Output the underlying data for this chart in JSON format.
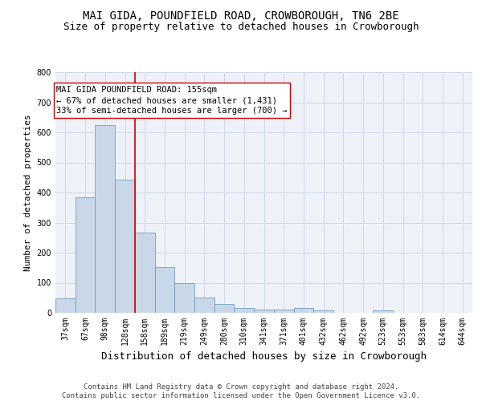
{
  "title_line1": "MAI GIDA, POUNDFIELD ROAD, CROWBOROUGH, TN6 2BE",
  "title_line2": "Size of property relative to detached houses in Crowborough",
  "xlabel": "Distribution of detached houses by size in Crowborough",
  "ylabel": "Number of detached properties",
  "categories": [
    "37sqm",
    "67sqm",
    "98sqm",
    "128sqm",
    "158sqm",
    "189sqm",
    "219sqm",
    "249sqm",
    "280sqm",
    "310sqm",
    "341sqm",
    "371sqm",
    "401sqm",
    "432sqm",
    "462sqm",
    "492sqm",
    "523sqm",
    "553sqm",
    "583sqm",
    "614sqm",
    "644sqm"
  ],
  "values": [
    47,
    383,
    623,
    443,
    268,
    153,
    98,
    52,
    29,
    17,
    11,
    11,
    15,
    8,
    0,
    0,
    8,
    0,
    0,
    0,
    0
  ],
  "bar_color": "#c8d8e8",
  "bar_edge_color": "#6090b8",
  "grid_color": "#d0d8e8",
  "background_color": "#eef2f8",
  "vline_color": "#cc0000",
  "vline_pos": 3.5,
  "annotation_text": "MAI GIDA POUNDFIELD ROAD: 155sqm\n← 67% of detached houses are smaller (1,431)\n33% of semi-detached houses are larger (700) →",
  "annotation_box_color": "#ffffff",
  "annotation_box_edge": "#cc0000",
  "ylim": [
    0,
    800
  ],
  "yticks": [
    0,
    100,
    200,
    300,
    400,
    500,
    600,
    700,
    800
  ],
  "footer_text": "Contains HM Land Registry data © Crown copyright and database right 2024.\nContains public sector information licensed under the Open Government Licence v3.0.",
  "title_fontsize": 10,
  "subtitle_fontsize": 9,
  "ylabel_fontsize": 8,
  "xlabel_fontsize": 9,
  "tick_fontsize": 7,
  "annotation_fontsize": 7.5,
  "footer_fontsize": 6.5
}
